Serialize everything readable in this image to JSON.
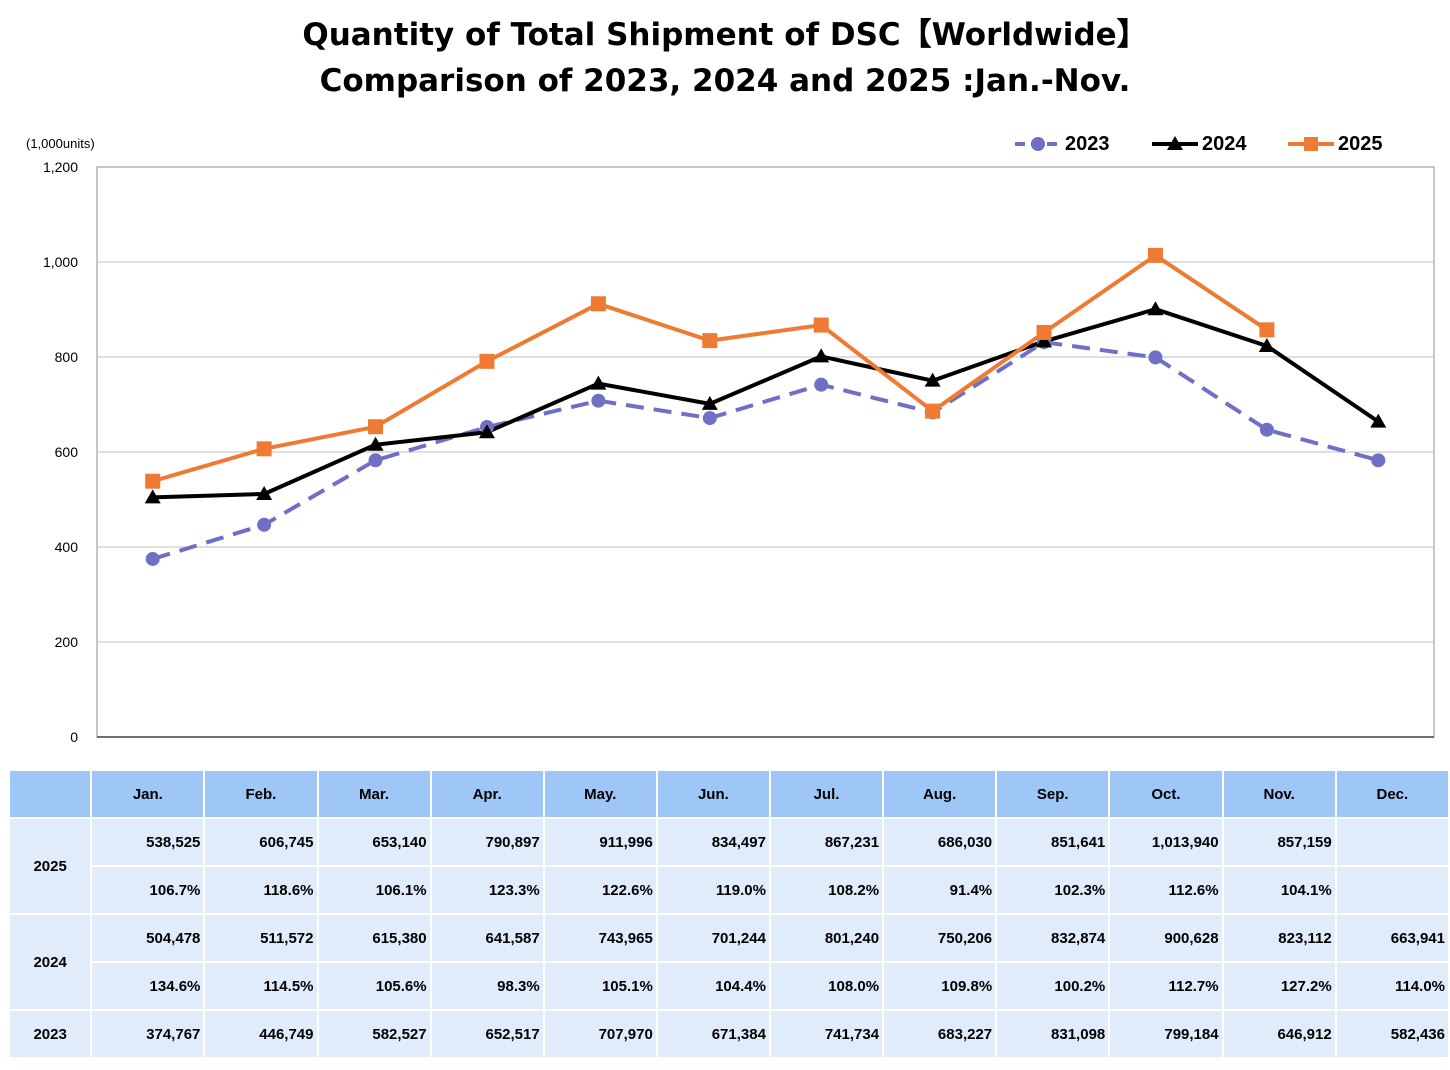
{
  "title_line1": "Quantity of Total Shipment of DSC【Worldwide】",
  "title_line2": "Comparison of 2023, 2024 and 2025 :Jan.-Nov.",
  "unit_label": "(1,000units)",
  "colors": {
    "s2023": "#6f6fc6",
    "s2024": "#000000",
    "s2025": "#ef7a33",
    "grid": "#bfbfbf",
    "header": "#9ec7f7",
    "cell": "#e1ecfb"
  },
  "chart_data": {
    "type": "line",
    "categories": [
      "Jan.",
      "Feb.",
      "Mar.",
      "Apr.",
      "May.",
      "Jun.",
      "Jul.",
      "Aug.",
      "Sep.",
      "Oct.",
      "Nov.",
      "Dec."
    ],
    "ylim": [
      0,
      1200
    ],
    "yticks": [
      "0",
      "200",
      "400",
      "600",
      "800",
      "1,000",
      "1,200"
    ],
    "ytick_values": [
      0,
      200,
      400,
      600,
      800,
      1000,
      1200
    ],
    "grid": true,
    "legend_position": "top-right",
    "series": [
      {
        "name": "2023",
        "style": "dashed",
        "marker": "circle",
        "values": [
          374.767,
          446.749,
          582.527,
          652.517,
          707.97,
          671.384,
          741.734,
          683.227,
          831.098,
          799.184,
          646.912,
          582.436
        ]
      },
      {
        "name": "2024",
        "style": "solid",
        "marker": "triangle",
        "values": [
          504.478,
          511.572,
          615.38,
          641.587,
          743.965,
          701.244,
          801.24,
          750.206,
          832.874,
          900.628,
          823.112,
          663.941
        ]
      },
      {
        "name": "2025",
        "style": "solid",
        "marker": "square",
        "values": [
          538.525,
          606.745,
          653.14,
          790.897,
          911.996,
          834.497,
          867.231,
          686.03,
          851.641,
          1013.94,
          857.159,
          null
        ]
      }
    ]
  },
  "table": {
    "months": [
      "Jan.",
      "Feb.",
      "Mar.",
      "Apr.",
      "May.",
      "Jun.",
      "Jul.",
      "Aug.",
      "Sep.",
      "Oct.",
      "Nov.",
      "Dec."
    ],
    "rows": [
      {
        "year": "2025",
        "values": [
          "538,525",
          "606,745",
          "653,140",
          "790,897",
          "911,996",
          "834,497",
          "867,231",
          "686,030",
          "851,641",
          "1,013,940",
          "857,159",
          ""
        ],
        "ratios": [
          "106.7%",
          "118.6%",
          "106.1%",
          "123.3%",
          "122.6%",
          "119.0%",
          "108.2%",
          "91.4%",
          "102.3%",
          "112.6%",
          "104.1%",
          ""
        ]
      },
      {
        "year": "2024",
        "values": [
          "504,478",
          "511,572",
          "615,380",
          "641,587",
          "743,965",
          "701,244",
          "801,240",
          "750,206",
          "832,874",
          "900,628",
          "823,112",
          "663,941"
        ],
        "ratios": [
          "134.6%",
          "114.5%",
          "105.6%",
          "98.3%",
          "105.1%",
          "104.4%",
          "108.0%",
          "109.8%",
          "100.2%",
          "112.7%",
          "127.2%",
          "114.0%"
        ]
      },
      {
        "year": "2023",
        "values": [
          "374,767",
          "446,749",
          "582,527",
          "652,517",
          "707,970",
          "671,384",
          "741,734",
          "683,227",
          "831,098",
          "799,184",
          "646,912",
          "582,436"
        ]
      }
    ]
  }
}
